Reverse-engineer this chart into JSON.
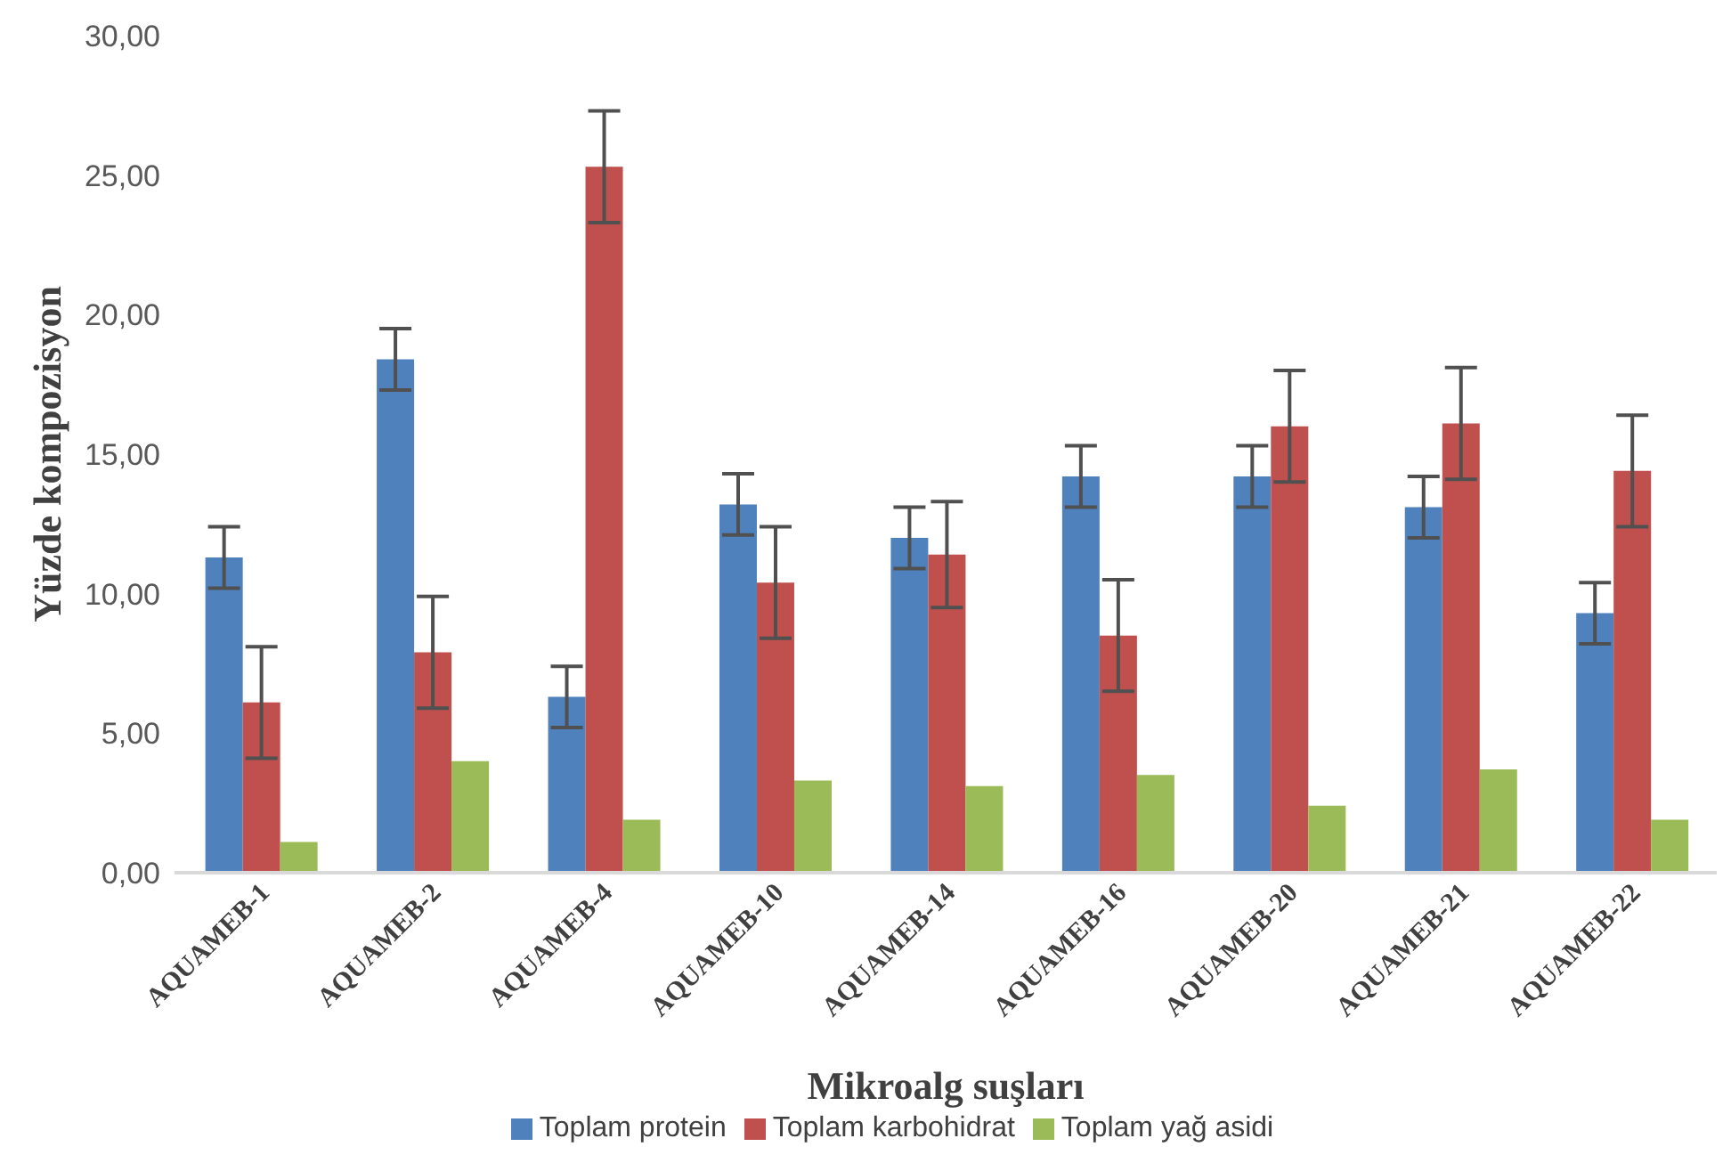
{
  "chart_data": {
    "type": "bar",
    "xlabel": "Mikroalg suşları",
    "ylabel": "Yüzde kompozisyon",
    "categories": [
      "AQUAMEB-1",
      "AQUAMEB-2",
      "AQUAMEB-4",
      "AQUAMEB-10",
      "AQUAMEB-14",
      "AQUAMEB-16",
      "AQUAMEB-20",
      "AQUAMEB-21",
      "AQUAMEB-22"
    ],
    "series": [
      {
        "name": "Toplam protein",
        "color": "#4f81bd",
        "values": [
          11.3,
          18.4,
          6.3,
          13.2,
          12.0,
          14.2,
          14.2,
          13.1,
          9.3
        ],
        "errors": [
          1.1,
          1.1,
          1.1,
          1.1,
          1.1,
          1.1,
          1.1,
          1.1,
          1.1
        ]
      },
      {
        "name": "Toplam karbohidrat",
        "color": "#c0504d",
        "values": [
          6.1,
          7.9,
          25.3,
          10.4,
          11.4,
          8.5,
          16.0,
          16.1,
          14.4
        ],
        "errors": [
          2.0,
          2.0,
          2.0,
          2.0,
          1.9,
          2.0,
          2.0,
          2.0,
          2.0
        ]
      },
      {
        "name": "Toplam yağ asidi",
        "color": "#9bbb59",
        "values": [
          1.1,
          4.0,
          1.9,
          3.3,
          3.1,
          3.5,
          2.4,
          3.7,
          1.9
        ]
      }
    ],
    "ylim": [
      0,
      30
    ],
    "yticks": [
      {
        "value": 0,
        "label": "0,00"
      },
      {
        "value": 5,
        "label": "5,00"
      },
      {
        "value": 10,
        "label": "10,00"
      },
      {
        "value": 15,
        "label": "15,00"
      },
      {
        "value": 20,
        "label": "20,00"
      },
      {
        "value": 25,
        "label": "25,00"
      },
      {
        "value": 30,
        "label": "30,00"
      }
    ],
    "grid": false,
    "legend": "bottom"
  }
}
